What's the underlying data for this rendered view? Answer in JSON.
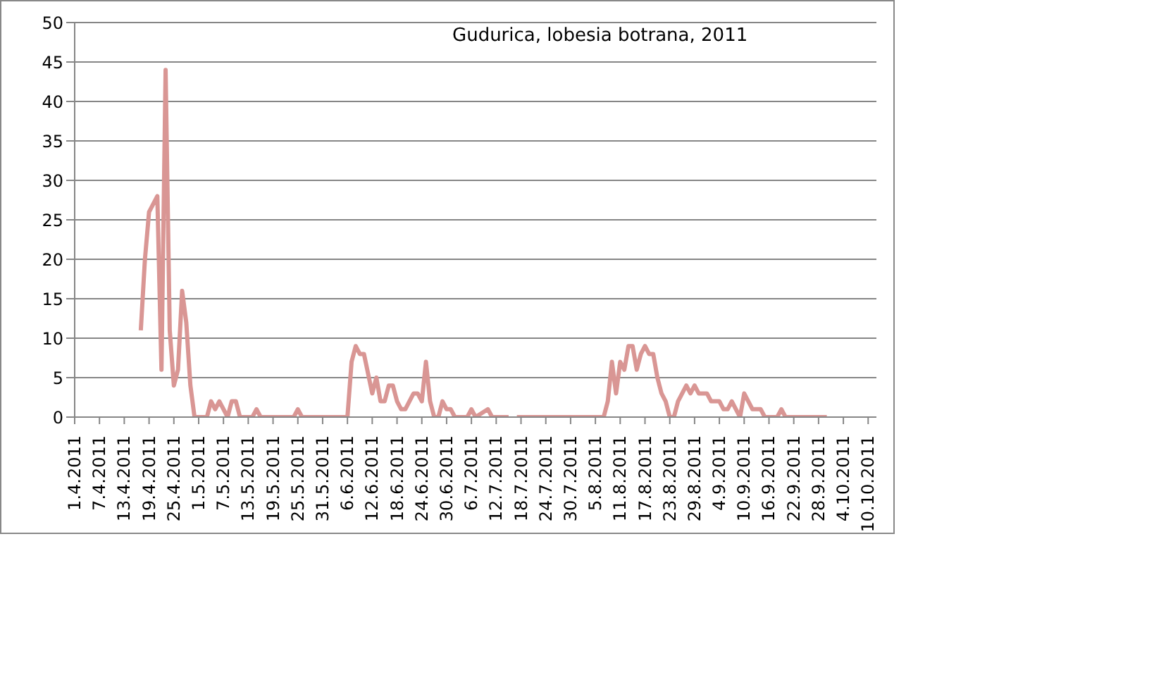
{
  "chart_data": {
    "type": "line",
    "title": "Gudurica, lobesia botrana, 2011",
    "x": [
      "2011-04-17",
      "2011-04-18",
      "2011-04-19",
      "2011-04-20",
      "2011-04-21",
      "2011-04-22",
      "2011-04-23",
      "2011-04-24",
      "2011-04-25",
      "2011-04-26",
      "2011-04-27",
      "2011-04-28",
      "2011-04-29",
      "2011-04-30",
      "2011-05-03",
      "2011-05-04",
      "2011-05-05",
      "2011-05-06",
      "2011-05-08",
      "2011-05-09",
      "2011-05-10",
      "2011-05-11",
      "2011-05-14",
      "2011-05-15",
      "2011-05-16",
      "2011-05-24",
      "2011-05-25",
      "2011-05-26",
      "2011-06-06",
      "2011-06-07",
      "2011-06-08",
      "2011-06-09",
      "2011-06-10",
      "2011-06-12",
      "2011-06-13",
      "2011-06-14",
      "2011-06-15",
      "2011-06-16",
      "2011-06-17",
      "2011-06-18",
      "2011-06-19",
      "2011-06-20",
      "2011-06-21",
      "2011-06-22",
      "2011-06-23",
      "2011-06-24",
      "2011-06-25",
      "2011-06-26",
      "2011-06-27",
      "2011-06-28",
      "2011-06-29",
      "2011-06-30",
      "2011-07-01",
      "2011-07-02",
      "2011-07-05",
      "2011-07-06",
      "2011-07-07",
      "2011-07-10",
      "2011-07-11",
      "2011-07-15",
      "2011-07-16",
      "2011-07-17",
      "2011-08-07",
      "2011-08-08",
      "2011-08-09",
      "2011-08-10",
      "2011-08-11",
      "2011-08-12",
      "2011-08-13",
      "2011-08-14",
      "2011-08-15",
      "2011-08-16",
      "2011-08-17",
      "2011-08-18",
      "2011-08-19",
      "2011-08-20",
      "2011-08-21",
      "2011-08-22",
      "2011-08-23",
      "2011-08-24",
      "2011-08-25",
      "2011-08-26",
      "2011-08-27",
      "2011-08-28",
      "2011-08-29",
      "2011-08-30",
      "2011-09-01",
      "2011-09-02",
      "2011-09-04",
      "2011-09-05",
      "2011-09-06",
      "2011-09-07",
      "2011-09-08",
      "2011-09-09",
      "2011-09-10",
      "2011-09-11",
      "2011-09-12",
      "2011-09-14",
      "2011-09-15",
      "2011-09-18",
      "2011-09-19",
      "2011-09-20",
      "2011-09-30"
    ],
    "series": [
      {
        "color": "#d99694",
        "values": [
          11,
          20,
          26,
          27,
          28,
          6,
          44,
          11,
          4,
          6,
          16,
          12,
          4,
          0,
          0,
          2,
          1,
          2,
          0,
          2,
          2,
          0,
          0,
          1,
          0,
          0,
          1,
          0,
          0,
          7,
          9,
          8,
          8,
          3,
          5,
          2,
          2,
          4,
          4,
          2,
          1,
          1,
          2,
          3,
          3,
          2,
          7,
          2,
          0,
          0,
          2,
          1,
          1,
          0,
          0,
          1,
          0,
          1,
          0,
          0,
          null,
          0,
          0,
          2,
          7,
          3,
          7,
          6,
          9,
          9,
          6,
          8,
          9,
          8,
          8,
          5,
          3,
          2,
          0,
          0,
          2,
          3,
          4,
          3,
          4,
          3,
          3,
          2,
          2,
          1,
          1,
          2,
          1,
          0,
          3,
          2,
          1,
          1,
          0,
          0,
          1,
          0,
          0
        ]
      }
    ],
    "xlim": [
      "2011-04-01",
      "2011-10-12"
    ],
    "xticks": [
      {
        "value": "2011-04-01",
        "label": "1.4.2011"
      },
      {
        "value": "2011-04-07",
        "label": "7.4.2011"
      },
      {
        "value": "2011-04-13",
        "label": "13.4.2011"
      },
      {
        "value": "2011-04-19",
        "label": "19.4.2011"
      },
      {
        "value": "2011-04-25",
        "label": "25.4.2011"
      },
      {
        "value": "2011-05-01",
        "label": "1.5.2011"
      },
      {
        "value": "2011-05-07",
        "label": "7.5.2011"
      },
      {
        "value": "2011-05-13",
        "label": "13.5.2011"
      },
      {
        "value": "2011-05-19",
        "label": "19.5.2011"
      },
      {
        "value": "2011-05-25",
        "label": "25.5.2011"
      },
      {
        "value": "2011-05-31",
        "label": "31.5.2011"
      },
      {
        "value": "2011-06-06",
        "label": "6.6.2011"
      },
      {
        "value": "2011-06-12",
        "label": "12.6.2011"
      },
      {
        "value": "2011-06-18",
        "label": "18.6.2011"
      },
      {
        "value": "2011-06-24",
        "label": "24.6.2011"
      },
      {
        "value": "2011-06-30",
        "label": "30.6.2011"
      },
      {
        "value": "2011-07-06",
        "label": "6.7.2011"
      },
      {
        "value": "2011-07-12",
        "label": "12.7.2011"
      },
      {
        "value": "2011-07-18",
        "label": "18.7.2011"
      },
      {
        "value": "2011-07-24",
        "label": "24.7.2011"
      },
      {
        "value": "2011-07-30",
        "label": "30.7.2011"
      },
      {
        "value": "2011-08-05",
        "label": "5.8.2011"
      },
      {
        "value": "2011-08-11",
        "label": "11.8.2011"
      },
      {
        "value": "2011-08-17",
        "label": "17.8.2011"
      },
      {
        "value": "2011-08-23",
        "label": "23.8.2011"
      },
      {
        "value": "2011-08-29",
        "label": "29.8.2011"
      },
      {
        "value": "2011-09-04",
        "label": "4.9.2011"
      },
      {
        "value": "2011-09-10",
        "label": "10.9.2011"
      },
      {
        "value": "2011-09-16",
        "label": "16.9.2011"
      },
      {
        "value": "2011-09-22",
        "label": "22.9.2011"
      },
      {
        "value": "2011-09-28",
        "label": "28.9.2011"
      },
      {
        "value": "2011-10-04",
        "label": "4.10.2011"
      },
      {
        "value": "2011-10-10",
        "label": "10.10.2011"
      }
    ],
    "ylim": [
      0,
      50
    ],
    "yticks": [
      0,
      5,
      10,
      15,
      20,
      25,
      30,
      35,
      40,
      45,
      50
    ],
    "grid": "y",
    "legend": false,
    "marker": "none",
    "line_style": "solid"
  }
}
